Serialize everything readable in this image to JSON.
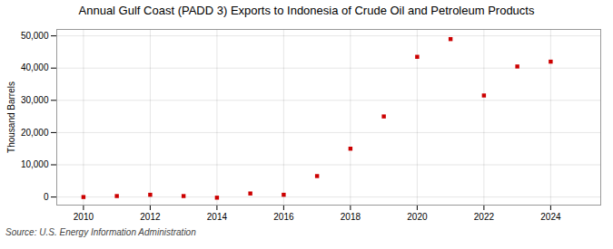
{
  "chart_data": {
    "type": "scatter",
    "title": "Annual Gulf Coast (PADD 3) Exports to Indonesia of Crude Oil and Petroleum Products",
    "y_label": "Thousand Barrels",
    "annotations": [
      "Source: U.S. Energy Information Administration"
    ],
    "x": [
      2010,
      2011,
      2012,
      2013,
      2014,
      2015,
      2016,
      2017,
      2018,
      2019,
      2020,
      2021,
      2022,
      2023,
      2024
    ],
    "values": [
      0,
      300,
      700,
      300,
      -200,
      1100,
      700,
      6500,
      15000,
      25000,
      43500,
      49000,
      31500,
      40500,
      42000
    ],
    "color": "#cc0000",
    "marker": "square",
    "xlim": [
      2009.2,
      2025.5
    ],
    "xticks": [
      2010,
      2012,
      2014,
      2016,
      2018,
      2020,
      2022,
      2024
    ],
    "ylim": [
      -2500,
      52000
    ],
    "yticks": [
      0,
      {
        "value": 10000,
        "label": "10,000"
      },
      {
        "value": 20000,
        "label": "20,000"
      },
      {
        "value": 30000,
        "label": "30,000"
      },
      {
        "value": 40000,
        "label": "40,000"
      },
      {
        "value": 50000,
        "label": "50,000"
      }
    ],
    "grid": true
  }
}
